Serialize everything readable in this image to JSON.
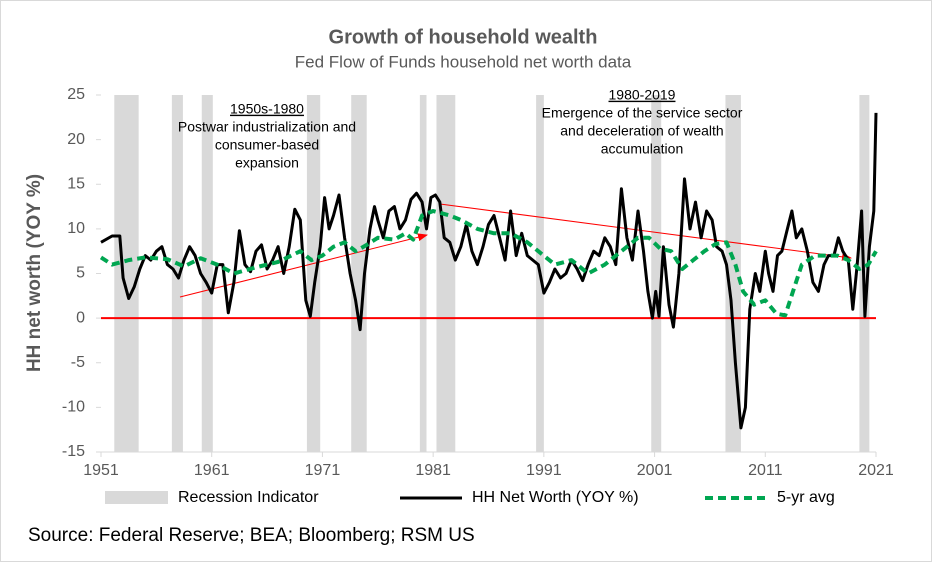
{
  "chart_data": {
    "type": "line",
    "title": "Growth of household wealth",
    "subtitle": "Fed Flow of Funds household net worth data",
    "y_label": "HH net worth (YOY %)",
    "source": "Source: Federal Reserve; BEA; Bloomberg; RSM US",
    "xlim": [
      1951,
      2021
    ],
    "xticks": [
      1951,
      1961,
      1971,
      1981,
      1991,
      2001,
      2011,
      2021
    ],
    "ylim": [
      -15,
      25
    ],
    "yticks": [
      -15,
      -10,
      -5,
      0,
      5,
      10,
      15,
      20,
      25
    ],
    "zero_line_color": "#ff0000",
    "recessions": {
      "name": "Recession Indicator",
      "color": "#d9d9d9",
      "ranges": [
        [
          1952.2,
          1954.4
        ],
        [
          1957.4,
          1958.4
        ],
        [
          1960.1,
          1961.1
        ],
        [
          1969.6,
          1970.8
        ],
        [
          1973.6,
          1975.0
        ],
        [
          1979.8,
          1980.4
        ],
        [
          1981.3,
          1983.0
        ],
        [
          1990.3,
          1991.0
        ],
        [
          2000.7,
          2001.6
        ],
        [
          2007.4,
          2008.8
        ],
        [
          2019.5,
          2020.4
        ]
      ]
    },
    "annotations": [
      {
        "heading": "1950s-1980",
        "lines": [
          "Postwar industrialization and",
          "consumer-based",
          "expansion"
        ]
      },
      {
        "heading": "1980-2019",
        "lines": [
          "Emergence of the service sector",
          "and deceleration of wealth",
          "accumulation"
        ]
      }
    ],
    "arrow_color": "#ff0000",
    "series": [
      {
        "name": "HH Net Worth (YOY %)",
        "color": "#000000",
        "dashed": false,
        "x": [
          1951,
          1952,
          1952.7,
          1953,
          1953.5,
          1954,
          1954.5,
          1955,
          1955.5,
          1956,
          1956.5,
          1957,
          1957.5,
          1958,
          1958.5,
          1959,
          1959.5,
          1960,
          1960.5,
          1961,
          1961.5,
          1962,
          1962.5,
          1963,
          1963.5,
          1964,
          1964.5,
          1965,
          1965.5,
          1966,
          1966.5,
          1967,
          1967.5,
          1968,
          1968.5,
          1969,
          1969.5,
          1969.9,
          1970.3,
          1970.8,
          1971.2,
          1971.6,
          1972,
          1972.5,
          1973,
          1973.5,
          1974,
          1974.4,
          1974.8,
          1975.3,
          1975.7,
          1976,
          1976.5,
          1977,
          1977.5,
          1978,
          1978.5,
          1979,
          1979.5,
          1980,
          1980.4,
          1980.8,
          1981.2,
          1981.6,
          1982,
          1982.5,
          1983,
          1983.5,
          1984,
          1984.5,
          1985,
          1985.5,
          1986,
          1986.5,
          1987,
          1987.5,
          1988,
          1988.5,
          1989,
          1989.5,
          1990,
          1990.5,
          1991,
          1991.5,
          1992,
          1992.5,
          1993,
          1993.5,
          1994,
          1994.5,
          1995,
          1995.5,
          1996,
          1996.5,
          1997,
          1997.5,
          1998,
          1998.5,
          1999,
          1999.5,
          2000,
          2000.4,
          2000.8,
          2001.1,
          2001.4,
          2001.8,
          2002.3,
          2002.7,
          2003.2,
          2003.7,
          2004.2,
          2004.7,
          2005.2,
          2005.7,
          2006.2,
          2006.6,
          2007.1,
          2007.5,
          2007.9,
          2008.3,
          2008.8,
          2009.2,
          2009.6,
          2010.1,
          2010.5,
          2011,
          2011.3,
          2011.7,
          2012.1,
          2012.5,
          2013,
          2013.4,
          2013.8,
          2014.3,
          2014.8,
          2015.3,
          2015.8,
          2016.3,
          2016.7,
          2017.2,
          2017.6,
          2018,
          2018.5,
          2018.9,
          2019.3,
          2019.7,
          2020,
          2020.4,
          2020.8,
          2021
        ],
        "values": [
          8.5,
          9.2,
          9.2,
          4.5,
          2.2,
          3.5,
          5.5,
          7,
          6.5,
          7.5,
          8,
          6,
          5.5,
          4.5,
          6.5,
          8,
          7,
          5,
          4,
          2.8,
          6,
          6,
          0.6,
          4,
          9.8,
          6,
          5.2,
          7.5,
          8.2,
          5.5,
          6.5,
          8,
          5,
          8,
          12.2,
          11,
          2,
          0.2,
          4,
          8,
          13.5,
          10,
          11.5,
          13.8,
          9,
          5,
          2,
          -1.3,
          5,
          10,
          12.5,
          11,
          9,
          12,
          12.5,
          10,
          11,
          13.3,
          14,
          13,
          10,
          13.5,
          13.8,
          13,
          9,
          8.5,
          6.5,
          8,
          10.5,
          7.5,
          6,
          8,
          10.5,
          11.5,
          9,
          6.5,
          12,
          7,
          9.5,
          7,
          6.5,
          6,
          2.8,
          4,
          5.5,
          4.5,
          5,
          6.5,
          5.5,
          4.2,
          6,
          7.5,
          7,
          9,
          8,
          6,
          14.5,
          9,
          6.5,
          12,
          7.5,
          3,
          0,
          3,
          0.2,
          8,
          1.5,
          -1,
          5,
          15.6,
          10,
          13,
          9,
          12,
          11,
          8,
          7.5,
          6,
          2,
          -5,
          -12.3,
          -10,
          1,
          5,
          3,
          7.5,
          5,
          3,
          7,
          7.5,
          10,
          12,
          9,
          10,
          7.5,
          4,
          3,
          6,
          7,
          7,
          9,
          7.5,
          6.5,
          1,
          6,
          12,
          0.2,
          8,
          12,
          23
        ]
      },
      {
        "name": "5-yr avg",
        "color": "#00a651",
        "dashed": true,
        "x": [
          1951,
          1952,
          1953.5,
          1955,
          1957,
          1958.5,
          1960,
          1961.5,
          1963,
          1965,
          1967,
          1969,
          1970,
          1971,
          1972,
          1973,
          1974,
          1975,
          1976,
          1977.5,
          1978.5,
          1979.2,
          1980,
          1981,
          1982.5,
          1983.5,
          1985,
          1986.5,
          1988,
          1989.5,
          1990.5,
          1992,
          1993.5,
          1995,
          1996.5,
          1998,
          1999.5,
          2000.5,
          2001.5,
          2002.5,
          2003.5,
          2004.5,
          2005.5,
          2006.5,
          2007.5,
          2008.3,
          2009,
          2010,
          2011,
          2012,
          2012.8,
          2013.5,
          2014.3,
          2015.5,
          2016.5,
          2017.5,
          2018.5,
          2019.5,
          2020.3,
          2021
        ],
        "values": [
          6.8,
          6,
          6.5,
          6.8,
          6.6,
          5.8,
          6.7,
          6,
          5,
          5.7,
          6.3,
          7.5,
          6.5,
          7,
          8,
          8.5,
          7.5,
          8.2,
          9,
          8.8,
          9.5,
          8.8,
          11.5,
          12,
          11.5,
          11,
          10,
          9.5,
          9.5,
          8.5,
          7.5,
          6,
          6.5,
          5,
          6,
          7.5,
          9,
          9,
          7.8,
          7.5,
          5.5,
          6.5,
          7.5,
          8.3,
          8.5,
          6,
          3,
          1.5,
          2,
          0.5,
          0.3,
          3,
          6,
          7,
          7,
          7,
          6.5,
          5.5,
          6,
          7.5
        ]
      }
    ]
  }
}
